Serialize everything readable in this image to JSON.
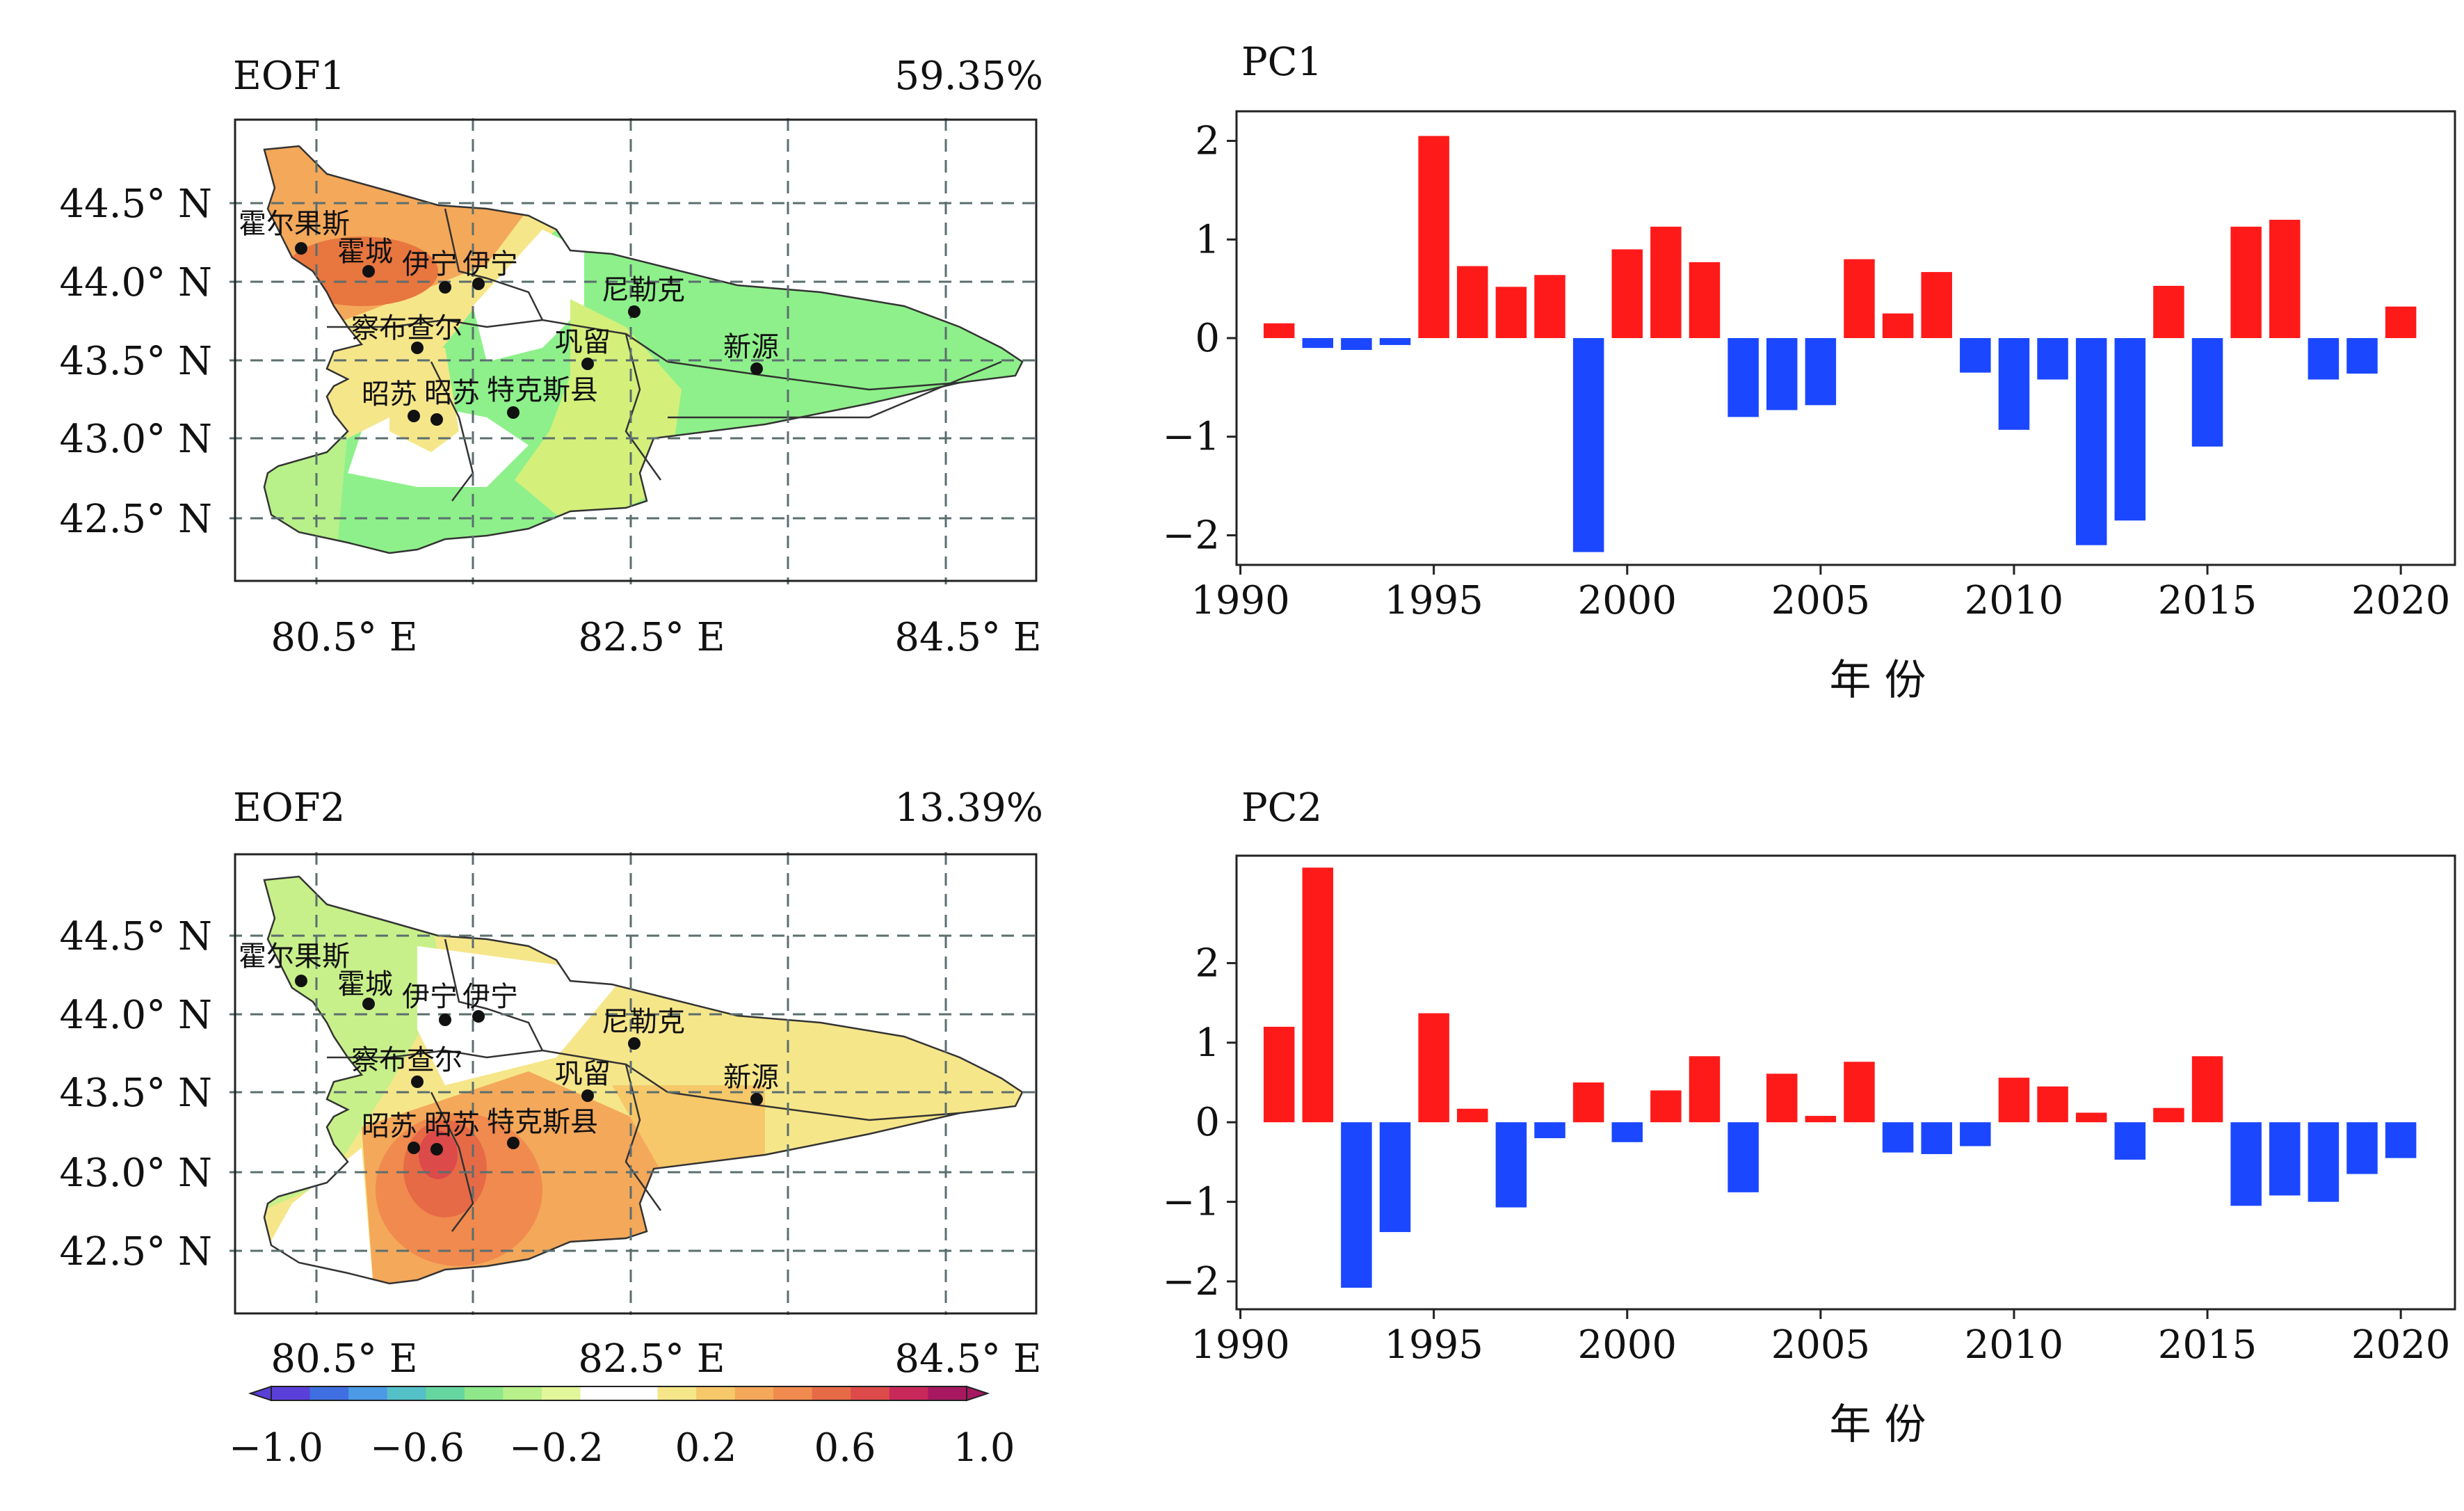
{
  "eof_panels": [
    {
      "label": "EOF1",
      "variance": "59.35%",
      "lat_ticks": [
        "44.5° N",
        "44.0° N",
        "43.5° N",
        "43.0° N",
        "42.5° N"
      ],
      "lon_ticks": [
        "80.5° E",
        "82.5° E",
        "84.5° E"
      ],
      "stations": [
        "霍尔果斯",
        "霍城",
        "伊宁",
        "伊宁",
        "尼勒克",
        "察布查尔",
        "巩留",
        "新源",
        "昭苏",
        "昭苏",
        "特克斯县"
      ]
    },
    {
      "label": "EOF2",
      "variance": "13.39%",
      "lat_ticks": [
        "44.5° N",
        "44.0° N",
        "43.5° N",
        "43.0° N",
        "42.5° N"
      ],
      "lon_ticks": [
        "80.5° E",
        "82.5° E",
        "84.5° E"
      ],
      "stations": [
        "霍尔果斯",
        "霍城",
        "伊宁",
        "伊宁",
        "尼勒克",
        "察布查尔",
        "巩留",
        "新源",
        "昭苏",
        "昭苏",
        "特克斯县"
      ]
    }
  ],
  "colorbar": {
    "tick_labels": [
      "−1.0",
      "−0.6",
      "−0.2",
      "0.2",
      "0.6",
      "1.0"
    ],
    "colors": [
      "#5a3fd8",
      "#3f6fe0",
      "#4a9ae6",
      "#54c0c8",
      "#66d6a0",
      "#8ee88a",
      "#b8f08a",
      "#e2f69a",
      "#ffffff",
      "#ffffff",
      "#f6e68a",
      "#f6c86a",
      "#f4a85a",
      "#f08a4e",
      "#e66a46",
      "#dd4a4a",
      "#c8285a",
      "#a81860"
    ],
    "positive_color": "#ff1a1a",
    "negative_color": "#1a47ff"
  },
  "chart_data": [
    {
      "type": "bar",
      "title": "PC1",
      "xlabel": "年 份",
      "ylabel": "",
      "x": [
        1991,
        1992,
        1993,
        1994,
        1995,
        1996,
        1997,
        1998,
        1999,
        2000,
        2001,
        2002,
        2003,
        2004,
        2005,
        2006,
        2007,
        2008,
        2009,
        2010,
        2011,
        2012,
        2013,
        2014,
        2015,
        2016,
        2017,
        2018,
        2019,
        2020
      ],
      "values": [
        0.15,
        -0.1,
        -0.12,
        -0.07,
        2.05,
        0.73,
        0.52,
        0.64,
        -2.17,
        0.9,
        1.13,
        0.77,
        -0.8,
        -0.73,
        -0.68,
        0.8,
        0.25,
        0.67,
        -0.35,
        -0.93,
        -0.42,
        -2.1,
        -1.85,
        0.53,
        -1.1,
        1.13,
        1.2,
        -0.42,
        -0.36,
        0.32
      ],
      "xlim": [
        1989.9,
        2021.4
      ],
      "ylim": [
        -2.3,
        2.3
      ],
      "x_ticks": [
        1990,
        1995,
        2000,
        2005,
        2010,
        2015,
        2020
      ],
      "x_tick_labels": [
        "1990",
        "1995",
        "2000",
        "2005",
        "2010",
        "2015",
        "2020"
      ],
      "y_ticks": [
        -2,
        -1,
        0,
        1,
        2
      ],
      "y_tick_labels": [
        "−2",
        "−1",
        "0",
        "1",
        "2"
      ],
      "grid": false
    },
    {
      "type": "bar",
      "title": "PC2",
      "xlabel": "年 份",
      "ylabel": "",
      "x": [
        1991,
        1992,
        1993,
        1994,
        1995,
        1996,
        1997,
        1998,
        1999,
        2000,
        2001,
        2002,
        2003,
        2004,
        2005,
        2006,
        2007,
        2008,
        2009,
        2010,
        2011,
        2012,
        2013,
        2014,
        2015,
        2016,
        2017,
        2018,
        2019,
        2020
      ],
      "values": [
        1.2,
        3.2,
        -2.08,
        -1.38,
        1.37,
        0.17,
        -1.07,
        -0.2,
        0.5,
        -0.25,
        0.4,
        0.83,
        -0.88,
        0.61,
        0.08,
        0.76,
        -0.38,
        -0.4,
        -0.3,
        0.56,
        0.45,
        0.12,
        -0.47,
        0.18,
        0.83,
        -1.05,
        -0.92,
        -1.0,
        -0.65,
        -0.45
      ],
      "xlim": [
        1989.9,
        2021.4
      ],
      "ylim": [
        -2.35,
        3.35
      ],
      "x_ticks": [
        1990,
        1995,
        2000,
        2005,
        2010,
        2015,
        2020
      ],
      "x_tick_labels": [
        "1990",
        "1995",
        "2000",
        "2005",
        "2010",
        "2015",
        "2020"
      ],
      "y_ticks": [
        -2,
        -1,
        0,
        1,
        2
      ],
      "y_tick_labels": [
        "−2",
        "−1",
        "0",
        "1",
        "2"
      ],
      "grid": false
    }
  ]
}
